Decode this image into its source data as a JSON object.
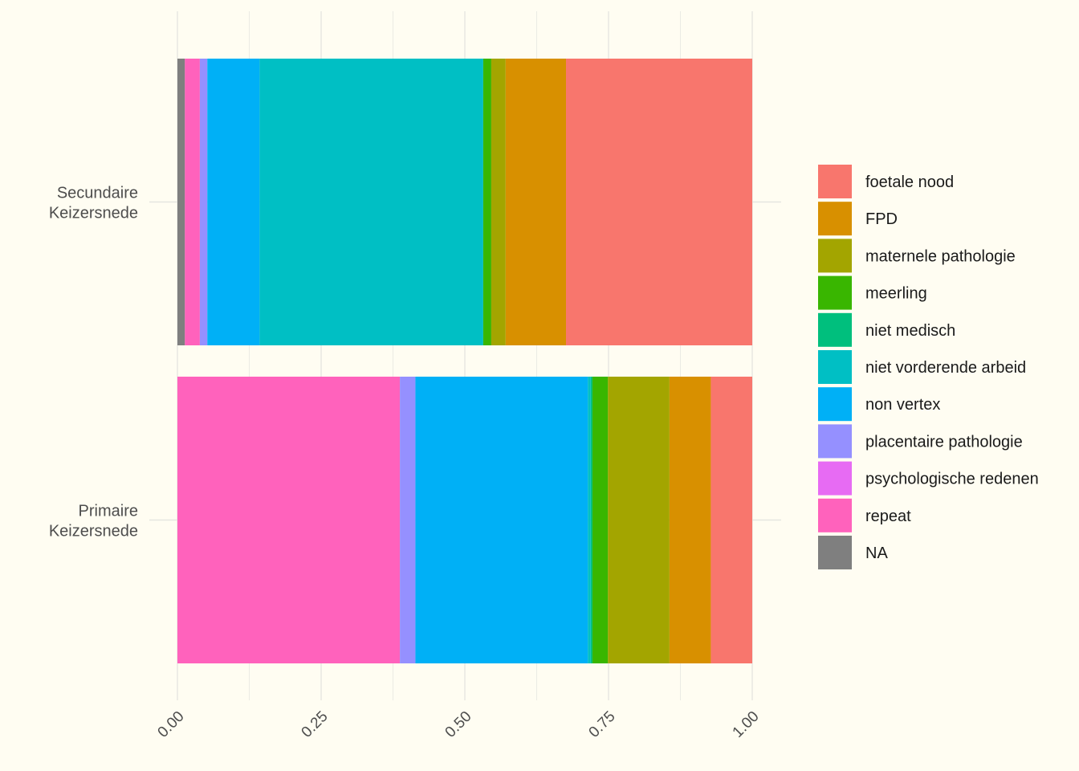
{
  "chart_data": {
    "type": "bar",
    "orientation": "horizontal",
    "stacked": "fill",
    "categories": [
      "Secundaire Keizersnede",
      "Primaire Keizersnede"
    ],
    "category_lines": [
      [
        "Secundaire",
        "Keizersnede"
      ],
      [
        "Primaire",
        "Keizersnede"
      ]
    ],
    "stack_order": [
      "NA",
      "repeat",
      "psychologische redenen",
      "placentaire pathologie",
      "non vertex",
      "niet vorderende arbeid",
      "niet medisch",
      "meerling",
      "maternele pathologie",
      "FPD",
      "foetale nood"
    ],
    "series": [
      {
        "name": "foetale nood",
        "color": "#F8766D",
        "values": [
          0.324,
          0.072
        ]
      },
      {
        "name": "FPD",
        "color": "#D89000",
        "values": [
          0.105,
          0.072
        ]
      },
      {
        "name": "maternele pathologie",
        "color": "#A3A500",
        "values": [
          0.025,
          0.107
        ]
      },
      {
        "name": "meerling",
        "color": "#39B600",
        "values": [
          0.014,
          0.027
        ]
      },
      {
        "name": "niet medisch",
        "color": "#00BF7D",
        "values": [
          0.0,
          0.003
        ]
      },
      {
        "name": "niet vorderende arbeid",
        "color": "#00BFC4",
        "values": [
          0.389,
          0.005
        ]
      },
      {
        "name": "non vertex",
        "color": "#00B0F6",
        "values": [
          0.091,
          0.3
        ]
      },
      {
        "name": "placentaire pathologie",
        "color": "#9590FF",
        "values": [
          0.013,
          0.027
        ]
      },
      {
        "name": "psychologische redenen",
        "color": "#E76BF3",
        "values": [
          0.0,
          0.0
        ]
      },
      {
        "name": "repeat",
        "color": "#FF62BC",
        "values": [
          0.026,
          0.387
        ]
      },
      {
        "name": "NA",
        "color": "#7F7F7F",
        "values": [
          0.013,
          0.0
        ]
      }
    ],
    "xlim": [
      0,
      1
    ],
    "x_ticks": [
      0,
      0.25,
      0.5,
      0.75,
      1
    ],
    "x_tick_labels": [
      "0.00",
      "0.25",
      "0.50",
      "0.75",
      "1.00"
    ],
    "xlabel": "",
    "ylabel": "",
    "title": "",
    "grid": true,
    "legend_position": "right",
    "background_color": "#fffdf2",
    "grid_color": "#e6e6e0"
  }
}
